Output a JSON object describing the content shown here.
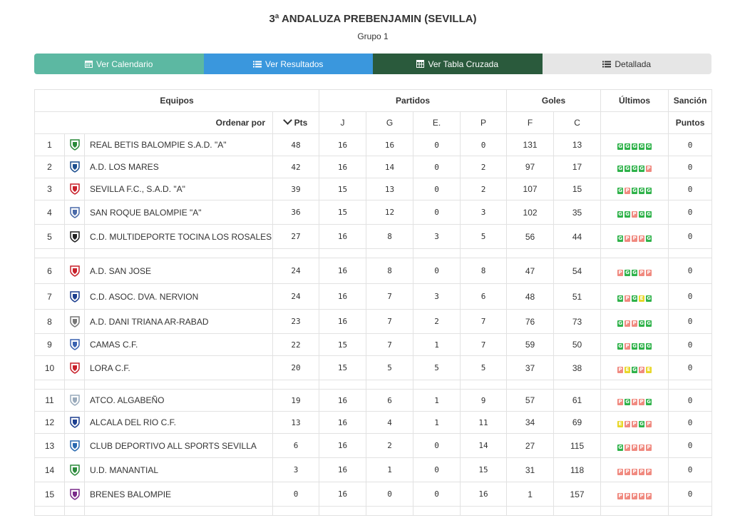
{
  "header": {
    "title": "3ª ANDALUZA PREBENJAMIN (SEVILLA)",
    "subtitle": "Grupo 1"
  },
  "tabs": [
    {
      "label": "Ver Calendario",
      "icon": "calendar-icon",
      "color": "#5cb8a2"
    },
    {
      "label": "Ver Resultados",
      "icon": "list-icon",
      "color": "#3a97dd"
    },
    {
      "label": "Ver Tabla Cruzada",
      "icon": "table-icon",
      "color": "#2a5a3c"
    },
    {
      "label": "Detallada",
      "icon": "list-detail-icon",
      "color": "#e6e6e6"
    }
  ],
  "table": {
    "group_headers": {
      "equipos": "Equipos",
      "partidos": "Partidos",
      "goles": "Goles",
      "ultimos": "Últimos",
      "sancion": "Sanción"
    },
    "columns": {
      "ordenar": "Ordenar por",
      "pts": "Pts",
      "j": "J",
      "g": "G",
      "e": "E.",
      "p": "P",
      "f": "F",
      "c": "C",
      "puntos": "Puntos"
    },
    "rows": [
      {
        "pos": "1",
        "team": "REAL BETIS BALOMPIE S.A.D. \"A\"",
        "pts": "48",
        "j": "16",
        "g": "16",
        "e": "0",
        "p": "0",
        "f": "131",
        "c": "13",
        "form": [
          "G",
          "G",
          "G",
          "G",
          "G"
        ],
        "sancion": "0"
      },
      {
        "pos": "2",
        "team": "A.D. LOS MARES",
        "pts": "42",
        "j": "16",
        "g": "14",
        "e": "0",
        "p": "2",
        "f": "97",
        "c": "17",
        "form": [
          "G",
          "G",
          "G",
          "G",
          "P"
        ],
        "sancion": "0"
      },
      {
        "pos": "3",
        "team": "SEVILLA F.C., S.A.D. \"A\"",
        "pts": "39",
        "j": "15",
        "g": "13",
        "e": "0",
        "p": "2",
        "f": "107",
        "c": "15",
        "form": [
          "G",
          "P",
          "G",
          "G",
          "G"
        ],
        "sancion": "0"
      },
      {
        "pos": "4",
        "team": "SAN ROQUE BALOMPIE \"A\"",
        "pts": "36",
        "j": "15",
        "g": "12",
        "e": "0",
        "p": "3",
        "f": "102",
        "c": "35",
        "form": [
          "G",
          "G",
          "P",
          "G",
          "G"
        ],
        "sancion": "0"
      },
      {
        "pos": "5",
        "team": "C.D. MULTIDEPORTE TOCINA LOS ROSALES",
        "pts": "27",
        "j": "16",
        "g": "8",
        "e": "3",
        "p": "5",
        "f": "56",
        "c": "44",
        "form": [
          "G",
          "P",
          "P",
          "P",
          "G"
        ],
        "sancion": "0"
      },
      {
        "pos": "6",
        "team": "A.D. SAN JOSE",
        "pts": "24",
        "j": "16",
        "g": "8",
        "e": "0",
        "p": "8",
        "f": "47",
        "c": "54",
        "form": [
          "P",
          "G",
          "G",
          "P",
          "P"
        ],
        "sancion": "0"
      },
      {
        "pos": "7",
        "team": "C.D. ASOC. DVA. NERVION",
        "pts": "24",
        "j": "16",
        "g": "7",
        "e": "3",
        "p": "6",
        "f": "48",
        "c": "51",
        "form": [
          "G",
          "P",
          "G",
          "E",
          "G"
        ],
        "sancion": "0"
      },
      {
        "pos": "8",
        "team": "A.D. DANI TRIANA AR-RABAD",
        "pts": "23",
        "j": "16",
        "g": "7",
        "e": "2",
        "p": "7",
        "f": "76",
        "c": "73",
        "form": [
          "G",
          "P",
          "P",
          "G",
          "G"
        ],
        "sancion": "0"
      },
      {
        "pos": "9",
        "team": "CAMAS C.F.",
        "pts": "22",
        "j": "15",
        "g": "7",
        "e": "1",
        "p": "7",
        "f": "59",
        "c": "50",
        "form": [
          "G",
          "P",
          "G",
          "G",
          "G"
        ],
        "sancion": "0"
      },
      {
        "pos": "10",
        "team": "LORA C.F.",
        "pts": "20",
        "j": "15",
        "g": "5",
        "e": "5",
        "p": "5",
        "f": "37",
        "c": "38",
        "form": [
          "P",
          "E",
          "G",
          "P",
          "E"
        ],
        "sancion": "0"
      },
      {
        "pos": "11",
        "team": "ATCO. ALGABEÑO",
        "pts": "19",
        "j": "16",
        "g": "6",
        "e": "1",
        "p": "9",
        "f": "57",
        "c": "61",
        "form": [
          "P",
          "G",
          "P",
          "P",
          "G"
        ],
        "sancion": "0"
      },
      {
        "pos": "12",
        "team": "ALCALA DEL RIO C.F.",
        "pts": "13",
        "j": "16",
        "g": "4",
        "e": "1",
        "p": "11",
        "f": "34",
        "c": "69",
        "form": [
          "E",
          "P",
          "P",
          "G",
          "P"
        ],
        "sancion": "0"
      },
      {
        "pos": "13",
        "team": "CLUB DEPORTIVO ALL SPORTS SEVILLA",
        "pts": "6",
        "j": "16",
        "g": "2",
        "e": "0",
        "p": "14",
        "f": "27",
        "c": "115",
        "form": [
          "G",
          "P",
          "P",
          "P",
          "P"
        ],
        "sancion": "0"
      },
      {
        "pos": "14",
        "team": "U.D. MANANTIAL",
        "pts": "3",
        "j": "16",
        "g": "1",
        "e": "0",
        "p": "15",
        "f": "31",
        "c": "118",
        "form": [
          "P",
          "P",
          "P",
          "P",
          "P"
        ],
        "sancion": "0"
      },
      {
        "pos": "15",
        "team": "BRENES BALOMPIE",
        "pts": "0",
        "j": "16",
        "g": "0",
        "e": "0",
        "p": "16",
        "f": "1",
        "c": "157",
        "form": [
          "P",
          "P",
          "P",
          "P",
          "P"
        ],
        "sancion": "0"
      }
    ]
  },
  "colors": {
    "win": "#2fb24a",
    "loss": "#f08a80",
    "draw": "#e8d72a",
    "link": "#3c73ad"
  }
}
